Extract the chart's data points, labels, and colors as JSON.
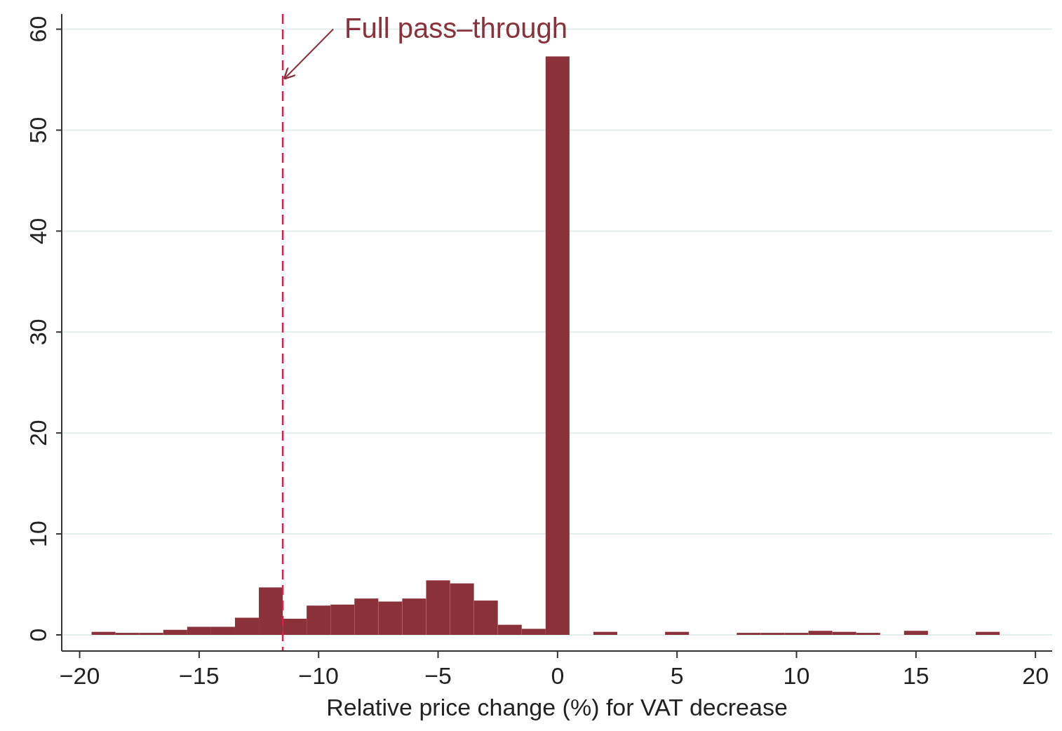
{
  "chart_data": {
    "type": "histogram",
    "xlabel": "Relative price change (%) for VAT decrease",
    "bins": [
      -19.5,
      -18.5,
      -17.5,
      -16.5,
      -15.5,
      -14.5,
      -13.5,
      -12.5,
      -11.5,
      -10.5,
      -9.5,
      -8.5,
      -7.5,
      -6.5,
      -5.5,
      -4.5,
      -3.5,
      -2.5,
      -1.5,
      -0.5,
      0.5,
      1.5,
      2.5,
      3.5,
      4.5,
      5.5,
      6.5,
      7.5,
      8.5,
      9.5,
      10.5,
      11.5,
      12.5,
      13.5,
      14.5,
      15.5,
      16.5,
      17.5,
      18.5
    ],
    "values": [
      0.3,
      0.2,
      0.2,
      0.5,
      0.8,
      0.8,
      1.7,
      4.7,
      1.6,
      2.9,
      3.0,
      3.6,
      3.3,
      3.6,
      5.4,
      5.1,
      3.4,
      1.0,
      0.6,
      57.3,
      0,
      0.3,
      0,
      0,
      0.3,
      0,
      0,
      0.2,
      0.2,
      0.2,
      0.4,
      0.3,
      0.2,
      0,
      0.4,
      0,
      0,
      0.3
    ],
    "color": "#8b3139",
    "xlim": [
      -20.75,
      20.7
    ],
    "ylim": [
      -1.6,
      61.5
    ],
    "xticks": [
      {
        "value": -20,
        "label": "−20"
      },
      {
        "value": -15,
        "label": "−15"
      },
      {
        "value": -10,
        "label": "−10"
      },
      {
        "value": -5,
        "label": "−5"
      },
      0,
      5,
      10,
      15,
      20
    ],
    "yticks": [
      0,
      10,
      20,
      30,
      40,
      50,
      60
    ],
    "grid": "y",
    "ref_lines": [
      {
        "axis": "x",
        "value": -11.5,
        "color": "#d4204a",
        "line_style": "dashed"
      }
    ],
    "annotations": [
      {
        "text": "Full pass–through",
        "x": -11.5,
        "y": 55
      }
    ]
  }
}
